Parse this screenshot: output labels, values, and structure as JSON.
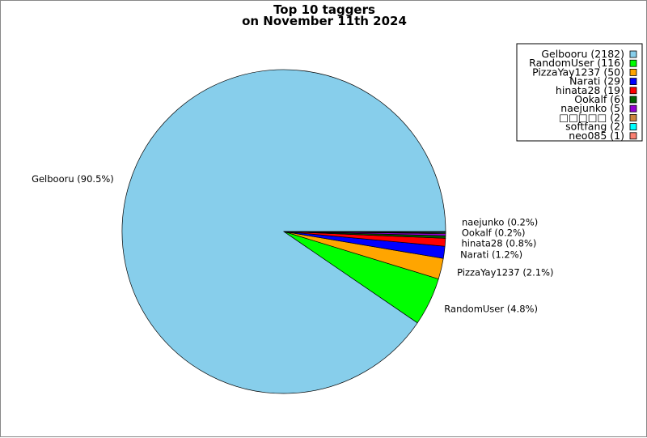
{
  "chart_data": {
    "type": "pie",
    "title": "Top 10 taggers",
    "subtitle": "on November 11th 2024",
    "legend_position": "top-right",
    "slices": [
      {
        "name": "Gelbooru",
        "value": 2182,
        "legend": "Gelbooru (2182)",
        "label": "Gelbooru (90.5%)",
        "color": "#87ceeb"
      },
      {
        "name": "RandomUser",
        "value": 116,
        "legend": "RandomUser (116)",
        "label": "RandomUser (4.8%)",
        "color": "#00ff00"
      },
      {
        "name": "PizzaYay1237",
        "value": 50,
        "legend": "PizzaYay1237 (50)",
        "label": "PizzaYay1237 (2.1%)",
        "color": "#ffa500"
      },
      {
        "name": "Narati",
        "value": 29,
        "legend": "Narati (29)",
        "label": "Narati (1.2%)",
        "color": "#0000ff"
      },
      {
        "name": "hinata28",
        "value": 19,
        "legend": "hinata28 (19)",
        "label": "hinata28 (0.8%)",
        "color": "#ff0000"
      },
      {
        "name": "Ookalf",
        "value": 6,
        "legend": "Ookalf (6)",
        "label": "Ookalf (0.2%)",
        "color": "#006400"
      },
      {
        "name": "naejunko",
        "value": 5,
        "legend": "naejunko (5)",
        "label": "naejunko (0.2%)",
        "color": "#9400d3"
      },
      {
        "name": "□□□□□",
        "value": 2,
        "legend": "□□□□□ (2)",
        "label": "",
        "color": "#cd853f"
      },
      {
        "name": "softfang",
        "value": 2,
        "legend": "softfang (2)",
        "label": "",
        "color": "#00ffff"
      },
      {
        "name": "neo085",
        "value": 1,
        "legend": "neo085 (1)",
        "label": "",
        "color": "#fa8072"
      }
    ]
  }
}
